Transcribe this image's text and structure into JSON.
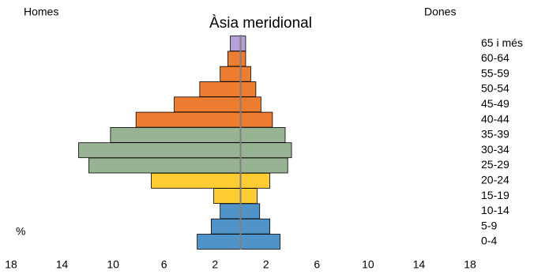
{
  "chart_data": {
    "type": "pyramid",
    "title": "Àsia meridional",
    "unit_label": "%",
    "categories": [
      "0-4",
      "5-9",
      "10-14",
      "15-19",
      "20-24",
      "25-29",
      "30-34",
      "35-39",
      "40-44",
      "45-49",
      "50-54",
      "55-59",
      "60-64",
      "65 i més"
    ],
    "colors": [
      "#4f93c8",
      "#4f93c8",
      "#4f93c8",
      "#ffcc33",
      "#ffcc33",
      "#98b394",
      "#98b394",
      "#98b394",
      "#ed7d31",
      "#ed7d31",
      "#ed7d31",
      "#ed7d31",
      "#ed7d31",
      "#b4a0d6"
    ],
    "series": [
      {
        "name": "Homes",
        "side": "left",
        "values": [
          3.4,
          2.3,
          1.6,
          2.1,
          7.0,
          11.9,
          12.7,
          10.2,
          8.2,
          5.2,
          3.2,
          1.6,
          1.0,
          0.8
        ]
      },
      {
        "name": "Dones",
        "side": "right",
        "values": [
          3.1,
          2.3,
          1.5,
          1.3,
          2.3,
          3.7,
          4.0,
          3.5,
          2.5,
          1.6,
          1.2,
          0.8,
          0.4,
          0.4
        ]
      }
    ],
    "xlim": [
      -18,
      18
    ],
    "xticks": [
      {
        "value": -18,
        "label": "18"
      },
      {
        "value": -14,
        "label": "14"
      },
      {
        "value": -10,
        "label": "10"
      },
      {
        "value": -6,
        "label": "6"
      },
      {
        "value": -2,
        "label": "2"
      },
      2,
      6,
      10,
      14,
      18
    ]
  }
}
